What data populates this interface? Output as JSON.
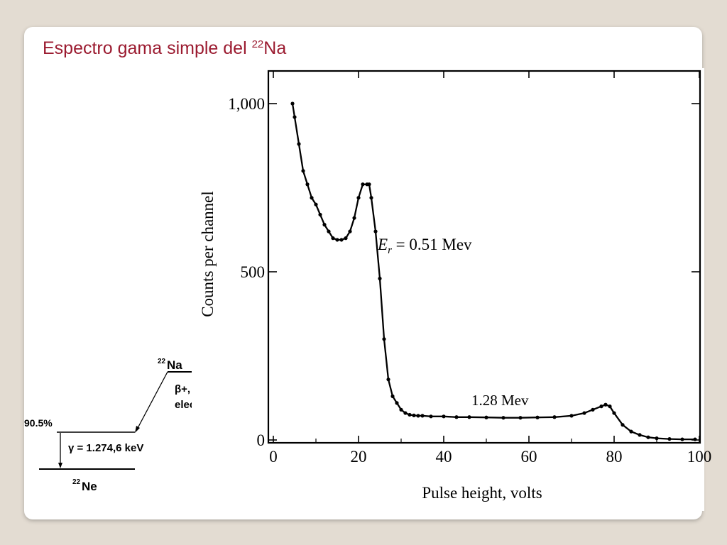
{
  "slide": {
    "title_text": "Espectro gama simple del ",
    "title_sup": "22",
    "title_element": "Na",
    "accent_color": "#9b1b30"
  },
  "decay_scheme": {
    "parent_mass": "22",
    "parent_symbol": "Na",
    "daughter_mass": "22",
    "daughter_symbol": "Ne",
    "branch_percent": "90.5%",
    "beta_label_line1": "β+, captura",
    "beta_label_line2": "electrónica",
    "gamma_label": "γ = 1.274,6 keV"
  },
  "chart_data": {
    "type": "line",
    "title": "",
    "xlabel": "Pulse height, volts",
    "ylabel": "Counts per channel",
    "xlim": [
      0,
      100
    ],
    "ylim": [
      0,
      1000
    ],
    "x_ticks": [
      0,
      20,
      40,
      60,
      80,
      100
    ],
    "x_tick_labels": [
      "0",
      "20",
      "40",
      "60",
      "80",
      "100"
    ],
    "y_ticks": [
      0,
      500,
      1000
    ],
    "y_tick_labels": [
      "0",
      "500",
      "1,000"
    ],
    "grid": false,
    "annotations": [
      {
        "text": "E",
        "sub": "r",
        "rest": " = 0.51 Mev",
        "x": 24,
        "y": 570
      },
      {
        "text": "1.28 Mev",
        "x": 46,
        "y": 105
      }
    ],
    "series": [
      {
        "x": [
          4.5,
          5,
          6,
          7,
          8,
          9,
          10,
          11,
          12,
          13,
          14,
          15,
          16,
          17,
          18,
          19,
          20,
          21,
          22,
          22.5,
          23,
          24,
          25,
          26,
          27,
          28,
          29,
          30,
          31,
          32,
          33,
          34,
          35,
          37,
          40,
          43,
          46,
          50,
          54,
          58,
          62,
          66,
          70,
          73,
          75,
          77,
          78,
          79,
          80,
          82,
          84,
          86,
          88,
          90,
          93,
          96,
          99
        ],
        "y": [
          1000,
          960,
          880,
          800,
          760,
          720,
          700,
          670,
          640,
          620,
          600,
          595,
          595,
          600,
          620,
          660,
          720,
          760,
          760,
          760,
          720,
          620,
          480,
          300,
          180,
          130,
          110,
          90,
          80,
          75,
          73,
          72,
          72,
          70,
          70,
          68,
          68,
          67,
          66,
          66,
          67,
          68,
          72,
          80,
          90,
          100,
          105,
          100,
          80,
          45,
          25,
          15,
          8,
          5,
          3,
          2,
          2
        ]
      }
    ]
  }
}
